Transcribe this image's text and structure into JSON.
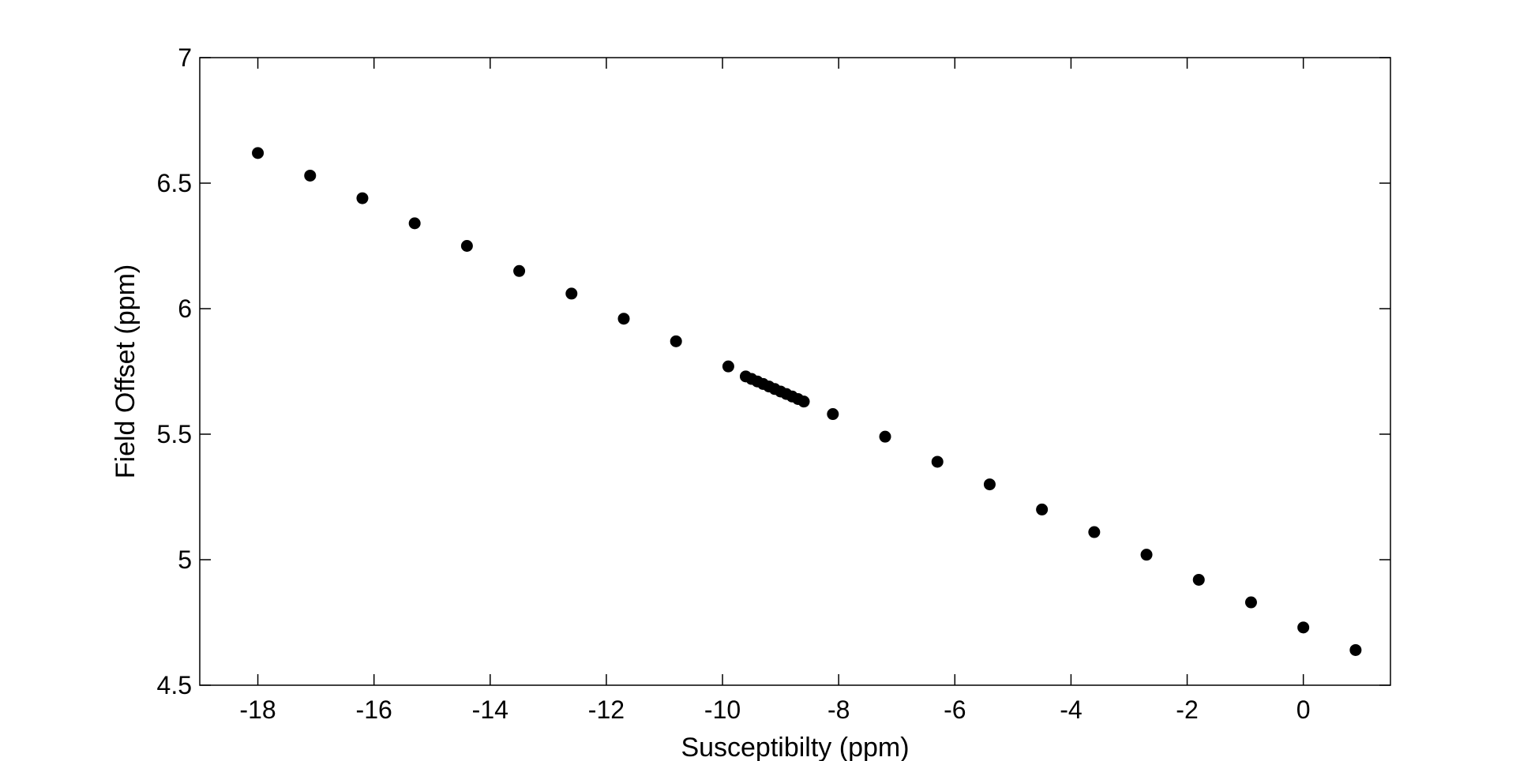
{
  "chart_data": {
    "type": "scatter",
    "title": "",
    "xlabel": "Susceptibilty (ppm)",
    "ylabel": "Field Offset (ppm)",
    "xlim": [
      -19,
      1.5
    ],
    "ylim": [
      4.5,
      7
    ],
    "xticks": [
      -18,
      -16,
      -14,
      -12,
      -10,
      -8,
      -6,
      -4,
      -2,
      0
    ],
    "xtick_labels": [
      "-18",
      "-16",
      "-14",
      "-12",
      "-10",
      "-8",
      "-6",
      "-4",
      "-2",
      "0"
    ],
    "yticks": [
      4.5,
      5,
      5.5,
      6,
      6.5,
      7
    ],
    "ytick_labels": [
      "4.5",
      "5",
      "5.5",
      "6",
      "6.5",
      "7"
    ],
    "grid": false,
    "legend": false,
    "marker_color": "#000000",
    "series": [
      {
        "x": [
          -18.0,
          -17.1,
          -16.2,
          -15.3,
          -14.4,
          -13.5,
          -12.6,
          -11.7,
          -10.8,
          -9.9,
          -9.6,
          -9.5,
          -9.4,
          -9.3,
          -9.2,
          -9.1,
          -9.0,
          -8.9,
          -8.8,
          -8.7,
          -8.6,
          -8.1,
          -7.2,
          -6.3,
          -5.4,
          -4.5,
          -3.6,
          -2.7,
          -1.8,
          -0.9,
          0.0,
          0.9
        ],
        "y": [
          6.62,
          6.53,
          6.44,
          6.34,
          6.25,
          6.15,
          6.06,
          5.96,
          5.87,
          5.77,
          5.73,
          5.72,
          5.71,
          5.7,
          5.69,
          5.68,
          5.67,
          5.66,
          5.65,
          5.64,
          5.63,
          5.58,
          5.49,
          5.39,
          5.3,
          5.2,
          5.11,
          5.02,
          4.92,
          4.83,
          4.73,
          4.64
        ]
      }
    ]
  }
}
